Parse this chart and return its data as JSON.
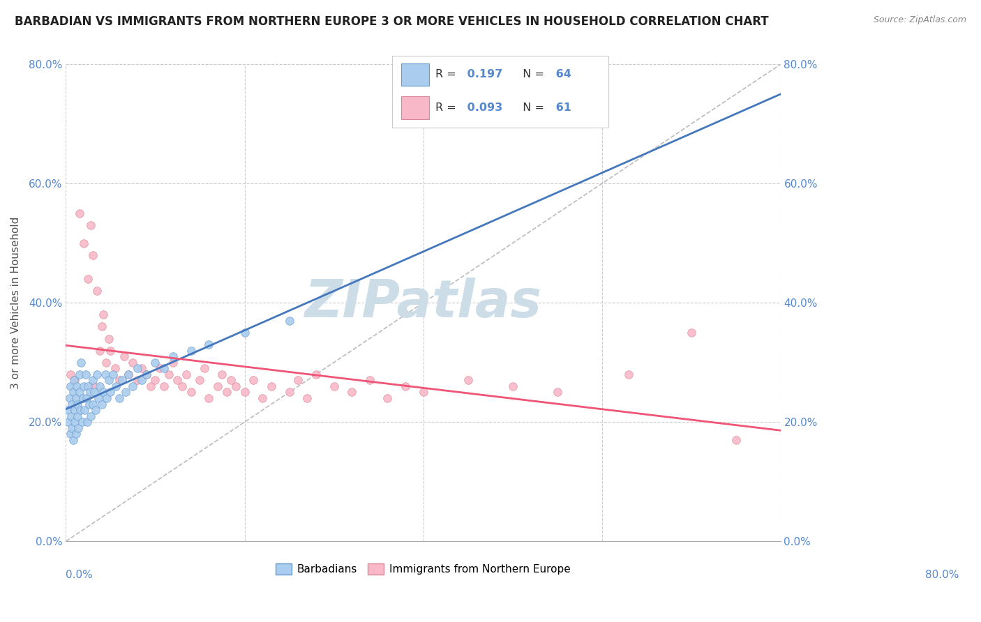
{
  "title": "BARBADIAN VS IMMIGRANTS FROM NORTHERN EUROPE 3 OR MORE VEHICLES IN HOUSEHOLD CORRELATION CHART",
  "source": "Source: ZipAtlas.com",
  "ylabel": "3 or more Vehicles in Household",
  "xmin": 0.0,
  "xmax": 0.8,
  "ymin": 0.0,
  "ymax": 0.8,
  "R_blue": 0.197,
  "N_blue": 64,
  "R_pink": 0.093,
  "N_pink": 61,
  "legend_bottom_blue": "Barbadians",
  "legend_bottom_pink": "Immigrants from Northern Europe",
  "blue_x": [
    0.002,
    0.003,
    0.004,
    0.005,
    0.005,
    0.006,
    0.007,
    0.007,
    0.008,
    0.008,
    0.009,
    0.01,
    0.01,
    0.011,
    0.011,
    0.012,
    0.013,
    0.013,
    0.014,
    0.015,
    0.015,
    0.016,
    0.017,
    0.018,
    0.019,
    0.02,
    0.021,
    0.022,
    0.023,
    0.024,
    0.025,
    0.026,
    0.027,
    0.028,
    0.03,
    0.03,
    0.032,
    0.033,
    0.035,
    0.036,
    0.038,
    0.04,
    0.042,
    0.044,
    0.046,
    0.048,
    0.05,
    0.053,
    0.056,
    0.06,
    0.063,
    0.067,
    0.07,
    0.075,
    0.08,
    0.085,
    0.09,
    0.1,
    0.11,
    0.12,
    0.14,
    0.16,
    0.2,
    0.25
  ],
  "blue_y": [
    0.22,
    0.2,
    0.24,
    0.18,
    0.26,
    0.21,
    0.23,
    0.19,
    0.25,
    0.17,
    0.27,
    0.22,
    0.2,
    0.24,
    0.18,
    0.26,
    0.21,
    0.23,
    0.19,
    0.25,
    0.28,
    0.22,
    0.3,
    0.2,
    0.24,
    0.26,
    0.22,
    0.28,
    0.24,
    0.2,
    0.26,
    0.23,
    0.25,
    0.21,
    0.27,
    0.23,
    0.25,
    0.22,
    0.28,
    0.24,
    0.26,
    0.23,
    0.25,
    0.28,
    0.24,
    0.27,
    0.25,
    0.28,
    0.26,
    0.24,
    0.27,
    0.25,
    0.28,
    0.26,
    0.29,
    0.27,
    0.28,
    0.3,
    0.29,
    0.31,
    0.32,
    0.33,
    0.35,
    0.37
  ],
  "pink_x": [
    0.005,
    0.01,
    0.015,
    0.02,
    0.025,
    0.028,
    0.03,
    0.032,
    0.035,
    0.038,
    0.04,
    0.042,
    0.045,
    0.048,
    0.05,
    0.055,
    0.06,
    0.065,
    0.07,
    0.075,
    0.08,
    0.085,
    0.09,
    0.095,
    0.1,
    0.105,
    0.11,
    0.115,
    0.12,
    0.125,
    0.13,
    0.135,
    0.14,
    0.15,
    0.155,
    0.16,
    0.17,
    0.175,
    0.18,
    0.185,
    0.19,
    0.2,
    0.21,
    0.22,
    0.23,
    0.25,
    0.26,
    0.27,
    0.28,
    0.3,
    0.32,
    0.34,
    0.36,
    0.38,
    0.4,
    0.45,
    0.5,
    0.55,
    0.63,
    0.7,
    0.75
  ],
  "pink_y": [
    0.28,
    0.27,
    0.55,
    0.5,
    0.44,
    0.53,
    0.48,
    0.26,
    0.42,
    0.32,
    0.36,
    0.38,
    0.3,
    0.34,
    0.32,
    0.29,
    0.27,
    0.31,
    0.28,
    0.3,
    0.27,
    0.29,
    0.28,
    0.26,
    0.27,
    0.29,
    0.26,
    0.28,
    0.3,
    0.27,
    0.26,
    0.28,
    0.25,
    0.27,
    0.29,
    0.24,
    0.26,
    0.28,
    0.25,
    0.27,
    0.26,
    0.25,
    0.27,
    0.24,
    0.26,
    0.25,
    0.27,
    0.24,
    0.28,
    0.26,
    0.25,
    0.27,
    0.24,
    0.26,
    0.25,
    0.27,
    0.26,
    0.25,
    0.28,
    0.35,
    0.17
  ],
  "blue_color": "#aaccee",
  "blue_edge": "#6699cc",
  "pink_color": "#f8b8c8",
  "pink_edge": "#dd8899",
  "line_blue_color": "#4477bb",
  "line_pink_color": "#ee5577",
  "diag_color": "#bbbbbb",
  "watermark_color": "#ccdde8",
  "grid_color": "#cccccc",
  "title_color": "#222222",
  "tick_label_color": "#5588cc",
  "axis_label_color": "#555555",
  "source_color": "#888888"
}
